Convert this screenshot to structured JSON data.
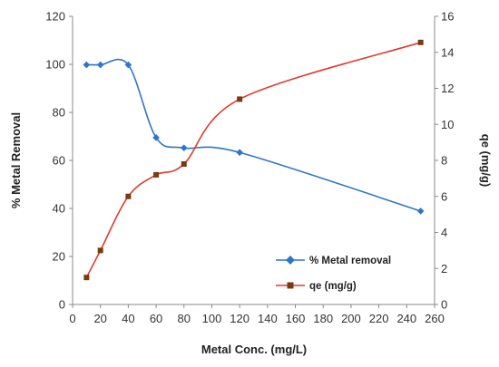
{
  "chart_data": {
    "type": "line",
    "title": "",
    "xlabel": "Metal Conc. (mg/L)",
    "ylabel": "% Metal Removal",
    "y2label": "qe (mg/g)",
    "xlim": [
      0,
      260
    ],
    "ylim": [
      0,
      120
    ],
    "y2lim": [
      0,
      16
    ],
    "xticks": [
      0,
      20,
      40,
      60,
      80,
      100,
      120,
      140,
      160,
      180,
      200,
      220,
      240,
      260
    ],
    "yticks": [
      0,
      20,
      40,
      60,
      80,
      100,
      120
    ],
    "y2ticks": [
      0,
      2,
      4,
      6,
      8,
      10,
      12,
      14,
      16
    ],
    "grid": false,
    "legend_position": "bottom-right",
    "series": [
      {
        "name": "% Metal removal",
        "axis": "left",
        "color": "#2e75c8",
        "marker": "diamond",
        "x": [
          10,
          20,
          40,
          60,
          80,
          120,
          250
        ],
        "y": [
          99.8,
          99.8,
          99.8,
          69.5,
          65.2,
          63.3,
          38.9
        ]
      },
      {
        "name": "qe (mg/g)",
        "axis": "right",
        "color": "#e03a2e",
        "marker_color": "#7a3a10",
        "marker": "square",
        "x": [
          10,
          20,
          40,
          60,
          80,
          120,
          250
        ],
        "y": [
          1.5,
          3.0,
          6.0,
          7.2,
          7.8,
          11.4,
          14.55
        ]
      }
    ]
  }
}
